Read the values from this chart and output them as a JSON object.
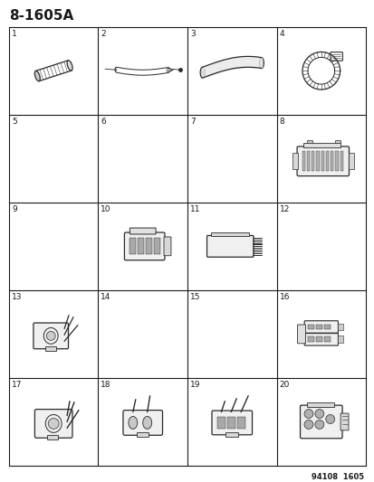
{
  "title": "8-1605A",
  "footer": "94108  1605",
  "bg_color": "#ffffff",
  "border_color": "#1a1a1a",
  "text_color": "#1a1a1a",
  "grid_rows": 5,
  "grid_cols": 4,
  "cell_numbers": [
    1,
    2,
    3,
    4,
    5,
    6,
    7,
    8,
    9,
    10,
    11,
    12,
    13,
    14,
    15,
    16,
    17,
    18,
    19,
    20
  ],
  "title_fontsize": 11,
  "number_fontsize": 6.5,
  "footer_fontsize": 6
}
